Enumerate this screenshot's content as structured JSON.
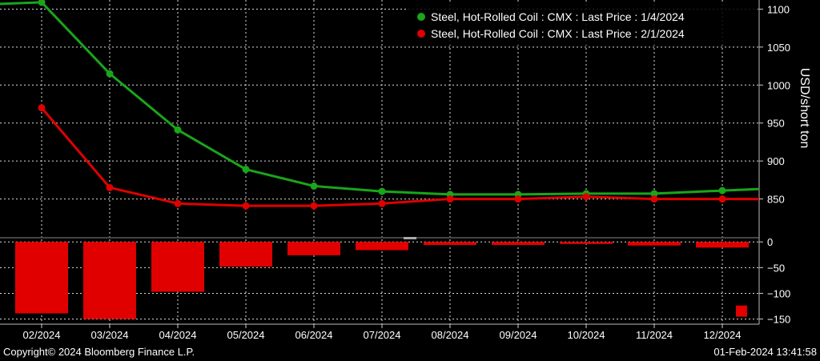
{
  "chart_data": [
    {
      "type": "line",
      "x": [
        "02/2024",
        "03/2024",
        "04/2024",
        "05/2024",
        "06/2024",
        "07/2024",
        "08/2024",
        "09/2024",
        "10/2024",
        "11/2024",
        "12/2024"
      ],
      "series": [
        {
          "name": "Steel, Hot-Rolled Coil : CMX : Last Price : 1/4/2024",
          "color": "#1aa51a",
          "values": [
            1109,
            1015,
            941,
            889,
            867,
            860,
            856,
            856,
            857,
            857,
            861
          ]
        },
        {
          "name": "Steel, Hot-Rolled Coil : CMX : Last Price : 2/1/2024",
          "color": "#e00000",
          "values": [
            970,
            865,
            844,
            841,
            841,
            844,
            850,
            850,
            853,
            850,
            850
          ]
        }
      ],
      "ylabel": "USD/short ton",
      "yticks": [
        850,
        900,
        950,
        1000,
        1050,
        1100
      ],
      "ylim": [
        800,
        1112
      ],
      "grid": true,
      "legend": "top-right"
    },
    {
      "type": "bar",
      "x": [
        "02/2024",
        "03/2024",
        "04/2024",
        "05/2024",
        "06/2024",
        "07/2024",
        "08/2024",
        "09/2024",
        "10/2024",
        "11/2024",
        "12/2024"
      ],
      "values": [
        -139,
        -150,
        -97,
        -48,
        -26,
        -16,
        -6,
        -6,
        -4,
        -7,
        -11
      ],
      "color": "#e00000",
      "last_marker": -133,
      "yticks": [
        0,
        -50,
        -100,
        -150
      ],
      "ylim": [
        -160,
        5
      ],
      "grid": true
    }
  ],
  "footer": {
    "copyright": "Copyright© 2024 Bloomberg Finance L.P.",
    "timestamp": "01-Feb-2024 13:41:58"
  }
}
